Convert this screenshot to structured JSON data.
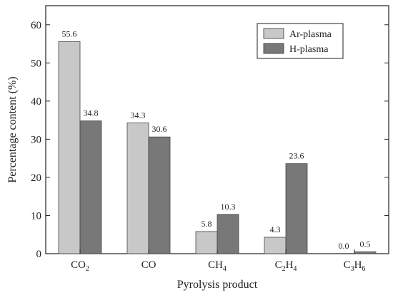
{
  "chart_data": {
    "type": "bar",
    "xlabel": "Pyrolysis product",
    "ylabel": "Percentage content (%)",
    "ylim": [
      0,
      65
    ],
    "yticks": [
      "0",
      "10",
      "20",
      "30",
      "40",
      "50",
      "60"
    ],
    "grid": false,
    "legend_position": "top-right",
    "categories": [
      {
        "main": "CO",
        "sub": "2",
        "tail": "",
        "tailsub": ""
      },
      {
        "main": "CO",
        "sub": "",
        "tail": "",
        "tailsub": ""
      },
      {
        "main": "CH",
        "sub": "4",
        "tail": "",
        "tailsub": ""
      },
      {
        "main": "C",
        "sub": "2",
        "tail": "H",
        "tailsub": "4"
      },
      {
        "main": "C",
        "sub": "3",
        "tail": "H",
        "tailsub": "6"
      }
    ],
    "series": [
      {
        "name": "Ar-plasma",
        "color": "#c8c8c8",
        "values": [
          55.6,
          34.3,
          5.8,
          4.3,
          0.0
        ],
        "labels": [
          "55.6",
          "34.3",
          "5.8",
          "4.3",
          "0.0"
        ]
      },
      {
        "name": "H-plasma",
        "color": "#787878",
        "values": [
          34.8,
          30.6,
          10.3,
          23.6,
          0.5
        ],
        "labels": [
          "34.8",
          "30.6",
          "10.3",
          "23.6",
          "0.5"
        ]
      }
    ]
  }
}
